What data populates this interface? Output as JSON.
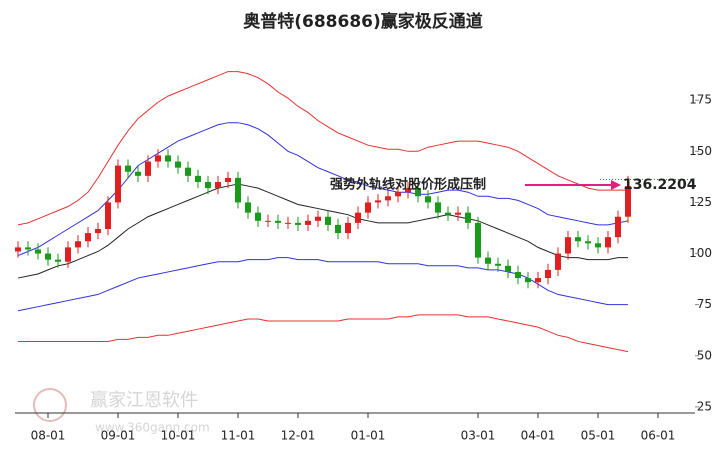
{
  "chart_data": {
    "type": "candlestick",
    "title": "奥普特(688686)赢家极反通道",
    "categories": [
      null,
      null,
      null,
      "08-01",
      null,
      null,
      null,
      null,
      null,
      null,
      "09-01",
      null,
      null,
      null,
      null,
      null,
      "10-01",
      null,
      null,
      null,
      null,
      null,
      "11-01",
      null,
      null,
      null,
      null,
      null,
      "12-01",
      null,
      null,
      null,
      null,
      null,
      null,
      "01-01",
      null,
      null,
      null,
      null,
      null,
      null,
      null,
      null,
      null,
      null,
      "03-01",
      null,
      null,
      null,
      null,
      null,
      "04-01",
      null,
      null,
      null,
      null,
      null,
      "05-01",
      null,
      null,
      null,
      null,
      null,
      "06-01"
    ],
    "open": [
      101,
      103,
      102,
      100,
      97,
      96,
      103,
      106,
      110,
      112,
      125,
      143,
      140,
      138,
      145,
      148,
      145,
      142,
      138,
      135,
      132,
      135,
      137,
      125,
      120,
      116,
      116,
      115,
      115,
      114,
      116,
      118,
      114,
      110,
      115,
      120,
      125,
      126,
      128,
      130,
      132,
      128,
      125,
      120,
      119,
      120,
      115,
      98,
      95,
      94,
      91,
      88,
      86,
      88,
      92,
      100,
      108,
      106,
      105,
      103,
      108,
      118,
      null,
      null,
      null
    ],
    "high": [
      106,
      106,
      105,
      103,
      100,
      106,
      109,
      113,
      115,
      128,
      146,
      146,
      143,
      148,
      151,
      151,
      148,
      145,
      141,
      138,
      138,
      140,
      140,
      128,
      123,
      119,
      119,
      118,
      118,
      119,
      121,
      121,
      117,
      118,
      123,
      128,
      129,
      131,
      133,
      135,
      135,
      131,
      128,
      123,
      123,
      123,
      118,
      101,
      98,
      97,
      94,
      91,
      91,
      95,
      103,
      111,
      111,
      109,
      108,
      111,
      121,
      138,
      null,
      null,
      null
    ],
    "low": [
      98,
      99,
      97,
      94,
      93,
      93,
      100,
      103,
      107,
      109,
      122,
      137,
      135,
      135,
      142,
      142,
      139,
      135,
      132,
      129,
      129,
      132,
      122,
      117,
      113,
      113,
      112,
      112,
      111,
      111,
      113,
      111,
      107,
      107,
      112,
      117,
      122,
      123,
      125,
      127,
      125,
      122,
      117,
      116,
      116,
      112,
      95,
      92,
      91,
      88,
      85,
      83,
      83,
      85,
      89,
      97,
      103,
      102,
      100,
      100,
      105,
      115,
      null,
      null,
      null
    ],
    "close": [
      103,
      102,
      100,
      97,
      96,
      103,
      106,
      110,
      112,
      125,
      143,
      140,
      138,
      145,
      148,
      145,
      142,
      138,
      135,
      132,
      135,
      137,
      125,
      120,
      116,
      116,
      115,
      115,
      114,
      116,
      118,
      114,
      110,
      115,
      120,
      125,
      126,
      128,
      130,
      132,
      128,
      125,
      120,
      119,
      120,
      115,
      98,
      95,
      94,
      91,
      88,
      86,
      88,
      92,
      100,
      108,
      106,
      105,
      103,
      108,
      118,
      133,
      null,
      null,
      null
    ],
    "up_color": "#e02020",
    "down_color": "#1a9a1a",
    "series": [
      {
        "color": "#e83030",
        "values": [
          57,
          57,
          57,
          57,
          57,
          57,
          57,
          57,
          57,
          57,
          58,
          58,
          59,
          59,
          60,
          60,
          61,
          62,
          63,
          64,
          65,
          66,
          67,
          68,
          68,
          67,
          67,
          67,
          67,
          67,
          67,
          67,
          67,
          68,
          68,
          68,
          68,
          68,
          69,
          69,
          70,
          70,
          70,
          70,
          70,
          69,
          69,
          69,
          68,
          67,
          66,
          65,
          64,
          62,
          60,
          59,
          57,
          56,
          55,
          54,
          53,
          52,
          null,
          null,
          null
        ]
      },
      {
        "color": "#3030e0",
        "values": [
          72,
          73,
          74,
          75,
          76,
          77,
          78,
          79,
          80,
          82,
          84,
          86,
          88,
          89,
          90,
          91,
          92,
          93,
          94,
          95,
          96,
          96,
          96,
          97,
          97,
          97,
          98,
          98,
          97,
          97,
          97,
          96,
          96,
          96,
          96,
          96,
          96,
          95,
          95,
          95,
          95,
          94,
          94,
          94,
          94,
          93,
          93,
          92,
          92,
          91,
          90,
          88,
          85,
          82,
          80,
          79,
          78,
          77,
          76,
          75,
          75,
          75,
          null,
          null,
          null
        ]
      },
      {
        "color": "#222222",
        "values": [
          88,
          89,
          90,
          92,
          94,
          95,
          97,
          99,
          101,
          104,
          108,
          112,
          115,
          118,
          120,
          122,
          124,
          126,
          128,
          130,
          132,
          133,
          134,
          133,
          132,
          130,
          128,
          126,
          124,
          123,
          122,
          121,
          120,
          119,
          117,
          116,
          115,
          115,
          115,
          115,
          116,
          117,
          118,
          119,
          118,
          117,
          116,
          114,
          112,
          110,
          108,
          106,
          103,
          101,
          99,
          98,
          98,
          97,
          97,
          97,
          98,
          98,
          null,
          null,
          null
        ]
      },
      {
        "color": "#3030e0",
        "values": [
          99,
          101,
          103,
          106,
          109,
          112,
          115,
          118,
          121,
          126,
          131,
          137,
          143,
          146,
          149,
          152,
          155,
          157,
          159,
          161,
          163,
          164,
          164,
          163,
          161,
          158,
          154,
          150,
          148,
          145,
          142,
          140,
          138,
          136,
          135,
          133,
          132,
          131,
          130,
          130,
          129,
          129,
          130,
          131,
          131,
          130,
          128,
          128,
          127,
          127,
          126,
          124,
          122,
          119,
          118,
          117,
          116,
          115,
          114,
          114,
          115,
          116,
          null,
          null,
          null
        ]
      },
      {
        "color": "#e83030",
        "values": [
          114,
          115,
          117,
          119,
          121,
          123,
          126,
          130,
          137,
          145,
          153,
          160,
          166,
          170,
          174,
          177,
          179,
          181,
          183,
          185,
          187,
          189,
          189,
          188,
          186,
          183,
          179,
          176,
          172,
          169,
          165,
          162,
          159,
          157,
          155,
          153,
          152,
          151,
          151,
          150,
          150,
          152,
          153,
          154,
          155,
          155,
          155,
          154,
          153,
          152,
          150,
          147,
          144,
          141,
          138,
          136,
          134,
          132,
          131,
          131,
          131,
          131,
          null,
          null,
          null
        ]
      }
    ],
    "ylim": [
      22,
      202
    ],
    "yticks": [
      25,
      50,
      75,
      100,
      125,
      150,
      175
    ],
    "grid": false,
    "annotation": {
      "text": "强势外轨线对股价形成压制",
      "value": 136.2204,
      "color": "#e0207a"
    },
    "watermark": {
      "name": "赢家江恩软件",
      "url": "www.360gann.com"
    }
  }
}
